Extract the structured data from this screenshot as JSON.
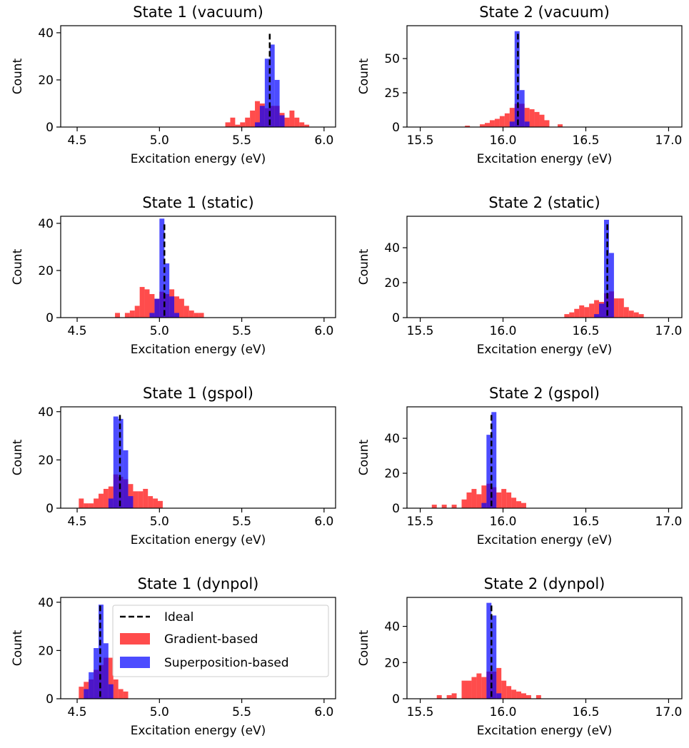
{
  "legend": {
    "ideal": "Ideal",
    "gradient": "Gradient-based",
    "superposition": "Superposition-based"
  },
  "colors": {
    "gradient": "#ff0000",
    "superposition": "#0000ff",
    "ideal": "#000000"
  },
  "chart_data": [
    {
      "type": "bar",
      "title": "State 1 (vacuum)",
      "xlabel": "Excitation energy (eV)",
      "ylabel": "Count",
      "xlim": [
        4.4,
        6.07
      ],
      "ylim": [
        0,
        43
      ],
      "xticks": [
        "4.5",
        "5.0",
        "5.5",
        "6.0"
      ],
      "yticks": [
        "0",
        "20",
        "40"
      ],
      "ideal": 5.67,
      "bin_width": 0.03,
      "series": [
        {
          "name": "Gradient-based",
          "bins": [
            5.4,
            5.43,
            5.46,
            5.49,
            5.52,
            5.55,
            5.58,
            5.61,
            5.64,
            5.67,
            5.7,
            5.73,
            5.76,
            5.79,
            5.82,
            5.85,
            5.88
          ],
          "counts": [
            2,
            4,
            1,
            2,
            4,
            7,
            11,
            10,
            8,
            9,
            9,
            6,
            4,
            7,
            4,
            2,
            1
          ]
        },
        {
          "name": "Superposition-based",
          "bins": [
            5.58,
            5.61,
            5.64,
            5.67,
            5.7,
            5.73
          ],
          "counts": [
            2,
            9,
            29,
            35,
            20,
            5
          ]
        }
      ]
    },
    {
      "type": "bar",
      "title": "State 2 (vacuum)",
      "xlabel": "Excitation energy (eV)",
      "ylabel": "Count",
      "xlim": [
        15.42,
        17.08
      ],
      "ylim": [
        0,
        74
      ],
      "xticks": [
        "15.5",
        "16.0",
        "16.5",
        "17.0"
      ],
      "yticks": [
        "0",
        "25",
        "50"
      ],
      "ideal": 16.09,
      "bin_width": 0.03,
      "series": [
        {
          "name": "Gradient-based",
          "bins": [
            15.77,
            15.86,
            15.89,
            15.92,
            15.95,
            15.98,
            16.01,
            16.04,
            16.07,
            16.1,
            16.13,
            16.16,
            16.19,
            16.22,
            16.25,
            16.33
          ],
          "counts": [
            1,
            2,
            3,
            5,
            6,
            8,
            10,
            14,
            17,
            17,
            14,
            13,
            11,
            9,
            5,
            2
          ]
        },
        {
          "name": "Superposition-based",
          "bins": [
            16.04,
            16.07,
            16.1,
            16.13
          ],
          "counts": [
            4,
            70,
            27,
            4
          ]
        }
      ]
    },
    {
      "type": "bar",
      "title": "State 1 (static)",
      "xlabel": "Excitation energy (eV)",
      "ylabel": "Count",
      "xlim": [
        4.4,
        6.07
      ],
      "ylim": [
        0,
        43
      ],
      "xticks": [
        "4.5",
        "5.0",
        "5.5",
        "6.0"
      ],
      "yticks": [
        "0",
        "20",
        "40"
      ],
      "ideal": 5.03,
      "bin_width": 0.03,
      "series": [
        {
          "name": "Gradient-based",
          "bins": [
            4.73,
            4.79,
            4.82,
            4.85,
            4.88,
            4.91,
            4.94,
            4.97,
            5.0,
            5.03,
            5.06,
            5.09,
            5.12,
            5.15,
            5.18,
            5.21,
            5.24
          ],
          "counts": [
            2,
            2,
            3,
            5,
            13,
            12,
            10,
            8,
            11,
            10,
            12,
            9,
            8,
            5,
            3,
            2,
            2
          ]
        },
        {
          "name": "Superposition-based",
          "bins": [
            4.94,
            4.97,
            5.0,
            5.03,
            5.06,
            5.09
          ],
          "counts": [
            2,
            8,
            42,
            23,
            9,
            2
          ]
        }
      ]
    },
    {
      "type": "bar",
      "title": "State 2 (static)",
      "xlabel": "Excitation energy (eV)",
      "ylabel": "Count",
      "xlim": [
        15.42,
        17.08
      ],
      "ylim": [
        0,
        58
      ],
      "xticks": [
        "15.5",
        "16.0",
        "16.5",
        "17.0"
      ],
      "yticks": [
        "0",
        "20",
        "40"
      ],
      "ideal": 16.63,
      "bin_width": 0.03,
      "series": [
        {
          "name": "Gradient-based",
          "bins": [
            16.37,
            16.4,
            16.43,
            16.46,
            16.49,
            16.52,
            16.55,
            16.58,
            16.61,
            16.64,
            16.67,
            16.7,
            16.73,
            16.76,
            16.79,
            16.82
          ],
          "counts": [
            2,
            3,
            5,
            7,
            6,
            8,
            10,
            9,
            14,
            15,
            11,
            11,
            6,
            4,
            3,
            2
          ]
        },
        {
          "name": "Superposition-based",
          "bins": [
            16.55,
            16.58,
            16.61,
            16.64
          ],
          "counts": [
            2,
            8,
            56,
            37
          ]
        }
      ]
    },
    {
      "type": "bar",
      "title": "State 1 (gspol)",
      "xlabel": "Excitation energy (eV)",
      "ylabel": "Count",
      "xlim": [
        4.4,
        6.07
      ],
      "ylim": [
        0,
        42
      ],
      "xticks": [
        "4.5",
        "5.0",
        "5.5",
        "6.0"
      ],
      "yticks": [
        "0",
        "20",
        "40"
      ],
      "ideal": 4.76,
      "bin_width": 0.03,
      "series": [
        {
          "name": "Gradient-based",
          "bins": [
            4.51,
            4.54,
            4.57,
            4.6,
            4.63,
            4.66,
            4.69,
            4.72,
            4.75,
            4.78,
            4.81,
            4.84,
            4.87,
            4.9,
            4.93,
            4.96,
            4.99
          ],
          "counts": [
            4,
            2,
            2,
            4,
            6,
            8,
            9,
            14,
            13,
            12,
            10,
            7,
            7,
            8,
            5,
            4,
            3
          ]
        },
        {
          "name": "Superposition-based",
          "bins": [
            4.69,
            4.72,
            4.75,
            4.78,
            4.81
          ],
          "counts": [
            4,
            38,
            37,
            24,
            5
          ]
        }
      ]
    },
    {
      "type": "bar",
      "title": "State 2 (gspol)",
      "xlabel": "Excitation energy (eV)",
      "ylabel": "Count",
      "xlim": [
        15.42,
        17.08
      ],
      "ylim": [
        0,
        58
      ],
      "xticks": [
        "15.5",
        "16.0",
        "16.5",
        "17.0"
      ],
      "yticks": [
        "0",
        "20",
        "40"
      ],
      "ideal": 15.93,
      "bin_width": 0.03,
      "series": [
        {
          "name": "Gradient-based",
          "bins": [
            15.57,
            15.63,
            15.69,
            15.75,
            15.78,
            15.81,
            15.84,
            15.87,
            15.9,
            15.93,
            15.96,
            15.99,
            16.02,
            16.05,
            16.08,
            16.11
          ],
          "counts": [
            2,
            2,
            2,
            5,
            9,
            11,
            8,
            13,
            14,
            12,
            9,
            11,
            9,
            6,
            4,
            3
          ]
        },
        {
          "name": "Superposition-based",
          "bins": [
            15.87,
            15.9,
            15.93
          ],
          "counts": [
            3,
            42,
            55
          ]
        }
      ]
    },
    {
      "type": "bar",
      "title": "State 1 (dynpol)",
      "xlabel": "Excitation energy (eV)",
      "ylabel": "Count",
      "xlim": [
        4.4,
        6.07
      ],
      "ylim": [
        0,
        42
      ],
      "xticks": [
        "4.5",
        "5.0",
        "5.5",
        "6.0"
      ],
      "yticks": [
        "0",
        "20",
        "40"
      ],
      "ideal": 4.64,
      "bin_width": 0.03,
      "series": [
        {
          "name": "Gradient-based",
          "bins": [
            4.51,
            4.54,
            4.57,
            4.6,
            4.63,
            4.66,
            4.69,
            4.72,
            4.75,
            4.78
          ],
          "counts": [
            5,
            7,
            8,
            12,
            14,
            17,
            17,
            8,
            4,
            3
          ]
        },
        {
          "name": "Superposition-based",
          "bins": [
            4.54,
            4.57,
            4.6,
            4.63,
            4.66,
            4.69
          ],
          "counts": [
            4,
            11,
            21,
            39,
            23,
            6
          ]
        }
      ]
    },
    {
      "type": "bar",
      "title": "State 2 (dynpol)",
      "xlabel": "Excitation energy (eV)",
      "ylabel": "Count",
      "xlim": [
        15.42,
        17.08
      ],
      "ylim": [
        0,
        56
      ],
      "xticks": [
        "15.5",
        "16.0",
        "16.5",
        "17.0"
      ],
      "yticks": [
        "0",
        "20",
        "40"
      ],
      "ideal": 15.93,
      "bin_width": 0.03,
      "series": [
        {
          "name": "Gradient-based",
          "bins": [
            15.6,
            15.66,
            15.69,
            15.75,
            15.78,
            15.81,
            15.84,
            15.87,
            15.9,
            15.93,
            15.96,
            15.99,
            16.02,
            16.05,
            16.08,
            16.11,
            16.14,
            16.2
          ],
          "counts": [
            2,
            2,
            3,
            10,
            10,
            12,
            14,
            12,
            15,
            15,
            17,
            10,
            7,
            5,
            4,
            3,
            2,
            2
          ]
        },
        {
          "name": "Superposition-based",
          "bins": [
            15.9,
            15.93,
            15.96
          ],
          "counts": [
            53,
            46,
            3
          ]
        }
      ]
    }
  ]
}
